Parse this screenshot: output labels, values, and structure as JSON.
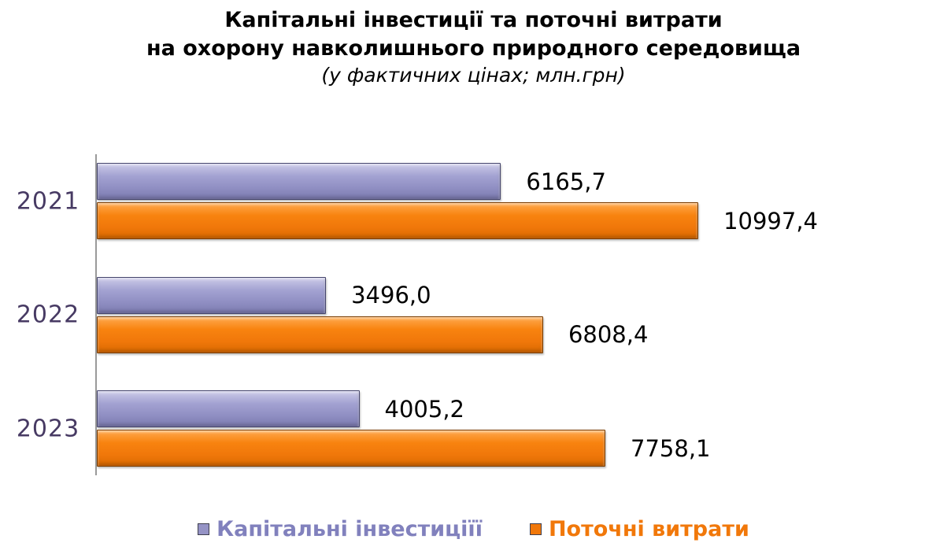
{
  "title": {
    "line1": "Капітальні інвестиції та поточні витрати",
    "line2": "на охорону навколишнього природного середовища",
    "subtitle": "(у фактичних цінах; млн.грн)"
  },
  "chart_data": {
    "type": "bar",
    "orientation": "horizontal",
    "title": "Капітальні інвестиції та поточні витрати на охорону навколишнього природного середовища (у фактичних цінах; млн.грн)",
    "categories": [
      "2021",
      "2022",
      "2023"
    ],
    "series": [
      {
        "name": "Капітальні інвестиції",
        "color": "#9593c5",
        "values": [
          6165.7,
          3496.0,
          4005.2
        ],
        "labels": [
          "6165,7",
          "3496,0",
          "4005,2"
        ]
      },
      {
        "name": "Поточні витрати",
        "color": "#f1780a",
        "values": [
          10997.4,
          6808.4,
          7758.1
        ],
        "labels": [
          "10997,4",
          "6808,4",
          "7758,1"
        ]
      }
    ],
    "xmax": 11000,
    "grid": false,
    "legend_position": "bottom",
    "legend": [
      {
        "label": "Капітальні інвестиціїї",
        "text_color": "#8181bd",
        "marker_color": "#9593c5"
      },
      {
        "label": "Поточні витрати",
        "text_color": "#f1780a",
        "marker_color": "#f1780a"
      }
    ],
    "category_label_color": "#473a63"
  }
}
